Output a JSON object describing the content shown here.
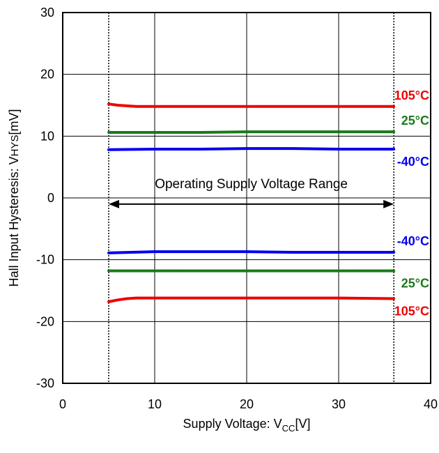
{
  "chart_data": {
    "type": "line",
    "xlabel": {
      "main": "Supply Voltage: V",
      "sub": "CC",
      "unit": "[V]"
    },
    "ylabel": {
      "main": "Hall Input Hysteresis: V",
      "sub": "HYS",
      "unit": "[mV]"
    },
    "xlim": [
      0,
      40
    ],
    "ylim": [
      -30,
      30
    ],
    "xticks": [
      0,
      10,
      20,
      30,
      40
    ],
    "yticks": [
      30,
      20,
      10,
      0,
      -10,
      -20,
      -30
    ],
    "grid": true,
    "operating_range": {
      "label": "Operating Supply Voltage Range",
      "x_min": 5,
      "x_max": 36
    },
    "series": [
      {
        "name": "105°C",
        "color": "#ee0000",
        "x": [
          5,
          6,
          7,
          8,
          10,
          15,
          20,
          25,
          30,
          36
        ],
        "y": [
          15.2,
          15.0,
          14.9,
          14.8,
          14.8,
          14.8,
          14.8,
          14.8,
          14.8,
          14.8
        ]
      },
      {
        "name": "25°C",
        "color": "#1a7a1a",
        "x": [
          5,
          10,
          15,
          20,
          25,
          30,
          36
        ],
        "y": [
          10.6,
          10.6,
          10.6,
          10.7,
          10.7,
          10.7,
          10.7
        ]
      },
      {
        "name": "-40°C",
        "color": "#0000ee",
        "x": [
          5,
          10,
          15,
          20,
          25,
          30,
          36
        ],
        "y": [
          7.8,
          7.9,
          7.9,
          8.0,
          8.0,
          7.9,
          7.9
        ]
      },
      {
        "name": "-40°C",
        "color": "#0000ee",
        "x": [
          5,
          10,
          15,
          20,
          25,
          30,
          36
        ],
        "y": [
          -8.9,
          -8.7,
          -8.7,
          -8.7,
          -8.8,
          -8.8,
          -8.8
        ]
      },
      {
        "name": "25°C",
        "color": "#1a7a1a",
        "x": [
          5,
          10,
          15,
          20,
          25,
          30,
          36
        ],
        "y": [
          -11.8,
          -11.8,
          -11.8,
          -11.8,
          -11.8,
          -11.8,
          -11.8
        ]
      },
      {
        "name": "105°C",
        "color": "#ee0000",
        "x": [
          5,
          6,
          7,
          8,
          10,
          15,
          20,
          25,
          30,
          36
        ],
        "y": [
          -16.8,
          -16.5,
          -16.3,
          -16.2,
          -16.2,
          -16.2,
          -16.2,
          -16.2,
          -16.2,
          -16.3
        ]
      }
    ]
  }
}
